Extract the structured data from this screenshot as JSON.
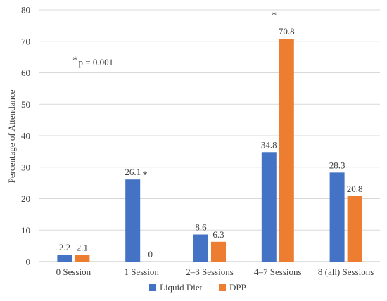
{
  "chart_data": {
    "type": "bar",
    "categories": [
      "0 Session",
      "1 Session",
      "2–3 Sessions",
      "4–7 Sessions",
      "8 (all) Sessions"
    ],
    "series": [
      {
        "name": "Liquid Diet",
        "values": [
          2.2,
          26.1,
          8.6,
          34.8,
          28.3
        ],
        "labels": [
          "2.2",
          "26.1",
          "8.6",
          "34.8",
          "28.3"
        ],
        "color": "#4472c4"
      },
      {
        "name": "DPP",
        "values": [
          2.1,
          0,
          6.3,
          70.8,
          20.8
        ],
        "labels": [
          "2.1",
          "0",
          "6.3",
          "70.8",
          "20.8"
        ],
        "color": "#ed7d31"
      }
    ],
    "ylabel": "Percentage of Attendance",
    "ylim": [
      0,
      80
    ],
    "yticks": [
      0,
      10,
      20,
      30,
      40,
      50,
      60,
      70,
      80
    ],
    "grid": true,
    "legend_position": "bottom-center",
    "significance_markers": [
      {
        "category": "1 Session",
        "series": "Liquid Diet",
        "text": "*"
      },
      {
        "category": "4–7 Sessions",
        "series": "DPP",
        "text": "*"
      }
    ],
    "annotation": {
      "star": "*",
      "text": "p = 0.001"
    }
  }
}
